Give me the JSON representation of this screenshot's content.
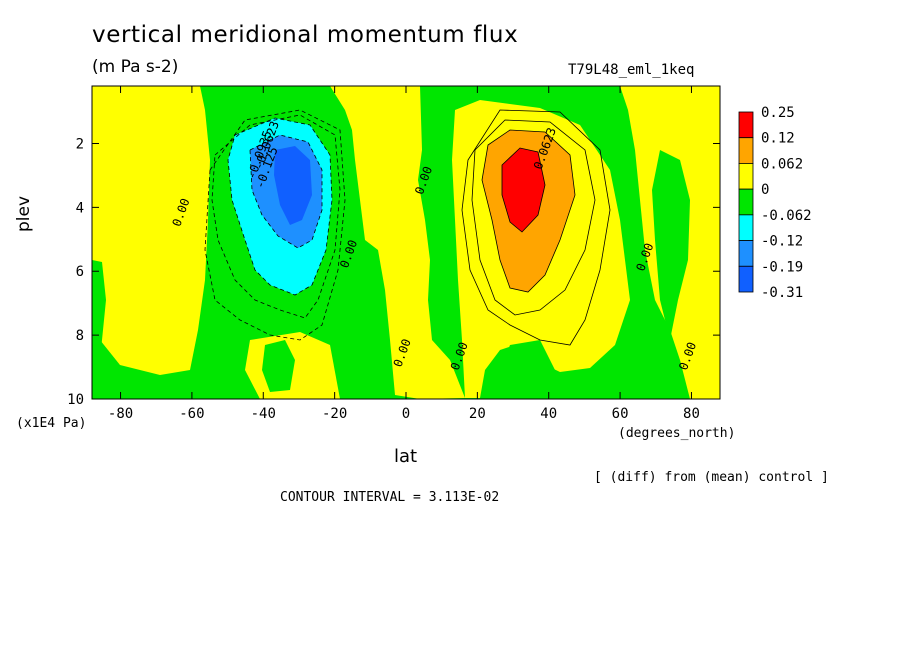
{
  "labels": {
    "title": "vertical meridional momentum flux",
    "subtitle": "(m Pa s-2)",
    "run": "T79L48_eml_1keq",
    "ylabel": "plev",
    "yunits": "(x1E4 Pa)",
    "xlabel": "lat",
    "xunits": "(degrees_north)",
    "diff_note": "[ (diff) from (mean) control ]",
    "contour_interval": "CONTOUR INTERVAL = 3.113E-02"
  },
  "chart_data": {
    "type": "heatmap",
    "x_axis": {
      "ticks": [
        -80,
        -60,
        -40,
        -20,
        0,
        20,
        40,
        60,
        80
      ],
      "range": [
        -88,
        88
      ]
    },
    "y_axis": {
      "ticks": [
        2,
        4,
        6,
        8,
        10
      ],
      "range": [
        0.2,
        10
      ],
      "inverted": true
    },
    "colorbar": {
      "labels": [
        "0.25",
        "0.12",
        "0.062",
        "0",
        "-0.062",
        "-0.12",
        "-0.19",
        "-0.31"
      ],
      "colors": [
        "#ff0000",
        "#ffa500",
        "#ffff00",
        "#00e600",
        "#00ffff",
        "#1e90ff",
        "#1060ff"
      ]
    },
    "contour_labels": [
      {
        "text": "0.00",
        "x": -62,
        "y": 4.2
      },
      {
        "text": "-0.0623",
        "x": -38,
        "y": 2.1
      },
      {
        "text": "-0.0935",
        "x": -40,
        "y": 2.4
      },
      {
        "text": "-0.125",
        "x": -38,
        "y": 2.8
      },
      {
        "text": "0.00",
        "x": -15,
        "y": 5.5
      },
      {
        "text": "0.00",
        "x": 6,
        "y": 3.2
      },
      {
        "text": "0.0623",
        "x": 40,
        "y": 2.2
      },
      {
        "text": "0.00",
        "x": 68,
        "y": 5.6
      },
      {
        "text": "0.00",
        "x": 0,
        "y": 8.6
      },
      {
        "text": "0.00",
        "x": 16,
        "y": 8.7
      },
      {
        "text": "0.00",
        "x": 80,
        "y": 8.7
      }
    ]
  }
}
